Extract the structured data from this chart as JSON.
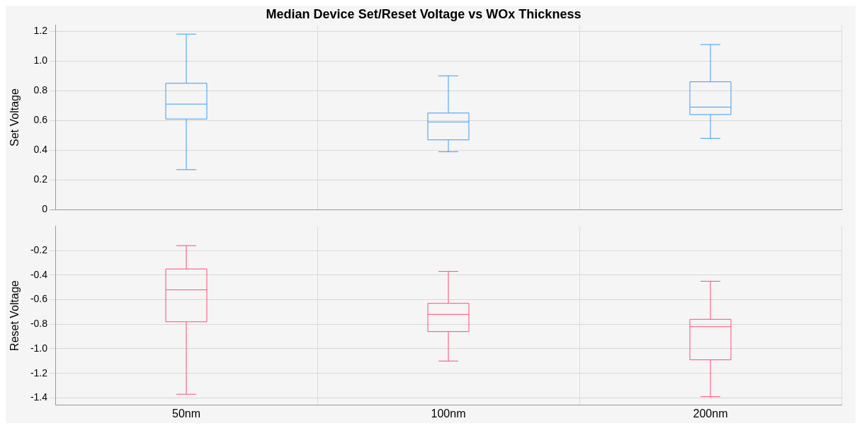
{
  "chart_data": [
    {
      "type": "box",
      "title": "Median Device Set/Reset Voltage vs WOx Thickness",
      "ylabel": "Set Voltage",
      "categories": [
        null,
        null,
        null
      ],
      "series": [
        {
          "color": "#3d9bf5",
          "boxes": [
            {
              "low": 0.27,
              "q1": 0.61,
              "median": 0.71,
              "q3": 0.85,
              "high": 1.18
            },
            {
              "low": 0.39,
              "q1": 0.47,
              "median": 0.59,
              "q3": 0.65,
              "high": 0.9
            },
            {
              "low": 0.48,
              "q1": 0.64,
              "median": 0.69,
              "q3": 0.86,
              "high": 1.11
            }
          ]
        }
      ],
      "ylim": [
        0,
        1.24
      ],
      "yticks": [
        0,
        0.2,
        0.4,
        0.6,
        0.8,
        {
          "value": 1,
          "label": "1.0"
        },
        1.2
      ],
      "grid": true,
      "tick_labels": "y"
    },
    {
      "type": "box",
      "ylabel": "Reset Voltage",
      "categories": [
        "50nm",
        "100nm",
        "200nm"
      ],
      "series": [
        {
          "color": "#ff4d79",
          "boxes": [
            {
              "low": -1.37,
              "q1": -0.78,
              "median": -0.52,
              "q3": -0.35,
              "high": -0.16
            },
            {
              "low": -1.1,
              "q1": -0.86,
              "median": -0.72,
              "q3": -0.63,
              "high": -0.37
            },
            {
              "low": -1.39,
              "q1": -1.09,
              "median": -0.82,
              "q3": -0.76,
              "high": -0.45
            }
          ]
        }
      ],
      "ylim": [
        -1.46,
        0
      ],
      "yticks": [
        -0.2,
        -0.4,
        -0.6,
        -0.8,
        {
          "value": -1,
          "label": "-1.0"
        },
        -1.2,
        -1.4
      ],
      "grid": true
    }
  ]
}
